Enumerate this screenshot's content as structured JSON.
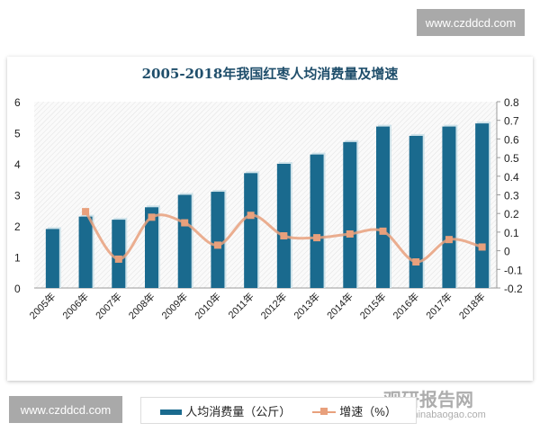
{
  "watermarks": {
    "top": "www.czddcd.com",
    "bottom": "www.czddcd.com",
    "brand": "观研报告网",
    "brand_url": "chinabaogao.com"
  },
  "chart_data": {
    "type": "bar+line",
    "title": "2005-2018年我国红枣人均消费量及增速",
    "categories": [
      "2005年",
      "2006年",
      "2007年",
      "2008年",
      "2009年",
      "2010年",
      "2011年",
      "2012年",
      "2013年",
      "2014年",
      "2015年",
      "2016年",
      "2017年",
      "2018年"
    ],
    "series": [
      {
        "name": "人均消费量（公斤）",
        "type": "bar",
        "axis": "left",
        "color": "#1a6a8e",
        "values": [
          1.9,
          2.3,
          2.2,
          2.6,
          3.0,
          3.1,
          3.7,
          4.0,
          4.3,
          4.7,
          5.2,
          4.9,
          5.2,
          5.3
        ]
      },
      {
        "name": "增速（%）",
        "type": "line",
        "axis": "right",
        "color": "#e8a07c",
        "values": [
          null,
          0.21,
          -0.045,
          0.18,
          0.15,
          0.03,
          0.19,
          0.08,
          0.07,
          0.09,
          0.105,
          -0.06,
          0.06,
          0.02
        ]
      }
    ],
    "y_left": {
      "range": [
        0,
        6
      ],
      "ticks": [
        "0",
        "1",
        "2",
        "3",
        "4",
        "5",
        "6"
      ]
    },
    "y_right": {
      "range": [
        -0.2,
        0.8
      ],
      "ticks": [
        "-0.2",
        "-0.1",
        "0",
        "0.1",
        "0.2",
        "0.3",
        "0.4",
        "0.5",
        "0.6",
        "0.7",
        "0.8"
      ]
    },
    "legend": "bottom",
    "grid": false
  }
}
